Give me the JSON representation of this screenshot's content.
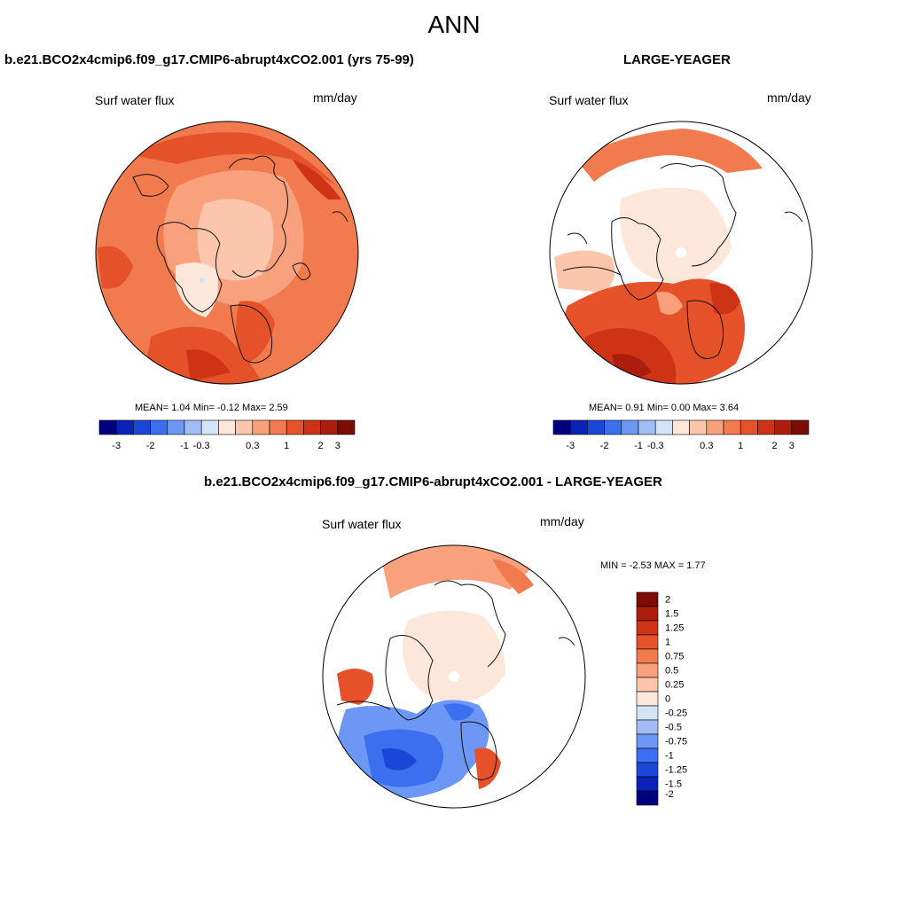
{
  "main_title": "ANN",
  "panels": [
    {
      "title": "b.e21.BCO2x4cmip6.f09_g17.CMIP6-abrupt4xCO2.001 (yrs 75-99)",
      "field_label": "Surf water flux",
      "units": "mm/day",
      "stats": "MEAN=   1.04  Min=   -0.12  Max=    2.59"
    },
    {
      "title": "LARGE-YEAGER",
      "field_label": "Surf water flux",
      "units": "mm/day",
      "stats": "MEAN=   0.91  Min=    0.00  Max=    3.64"
    },
    {
      "title": "b.e21.BCO2x4cmip6.f09_g17.CMIP6-abrupt4xCO2.001 - LARGE-YEAGER",
      "field_label": "Surf water flux",
      "units": "mm/day",
      "stats": "MIN =  -2.53 MAX =    1.77"
    }
  ],
  "colorbar_h": {
    "colors": [
      "#00007f",
      "#0a22b8",
      "#1b47d8",
      "#3b6ff0",
      "#6d97f5",
      "#a2bdf5",
      "#d4e4f7",
      "#fde7da",
      "#fcc6ad",
      "#f9a07c",
      "#f17a4e",
      "#e5522a",
      "#cf3316",
      "#ab1e0e",
      "#7d0b06"
    ],
    "tick_labels": [
      "-3",
      "-2",
      "-1",
      "-0.3",
      "0.3",
      "1",
      "2",
      "3"
    ]
  },
  "colorbar_v": {
    "colors": [
      "#7d0b06",
      "#ab1e0e",
      "#cf3316",
      "#e5522a",
      "#f17a4e",
      "#f9a07c",
      "#fcc6ad",
      "#fde7da",
      "#d4e4f7",
      "#a2bdf5",
      "#6d97f5",
      "#3b6ff0",
      "#1b47d8",
      "#0a22b8",
      "#00007f"
    ],
    "tick_labels": [
      "2",
      "1.5",
      "1.25",
      "1",
      "0.75",
      "0.5",
      "0.25",
      "0",
      "-0.25",
      "-0.5",
      "-0.75",
      "-1",
      "-1.25",
      "-1.5",
      "-2"
    ]
  }
}
